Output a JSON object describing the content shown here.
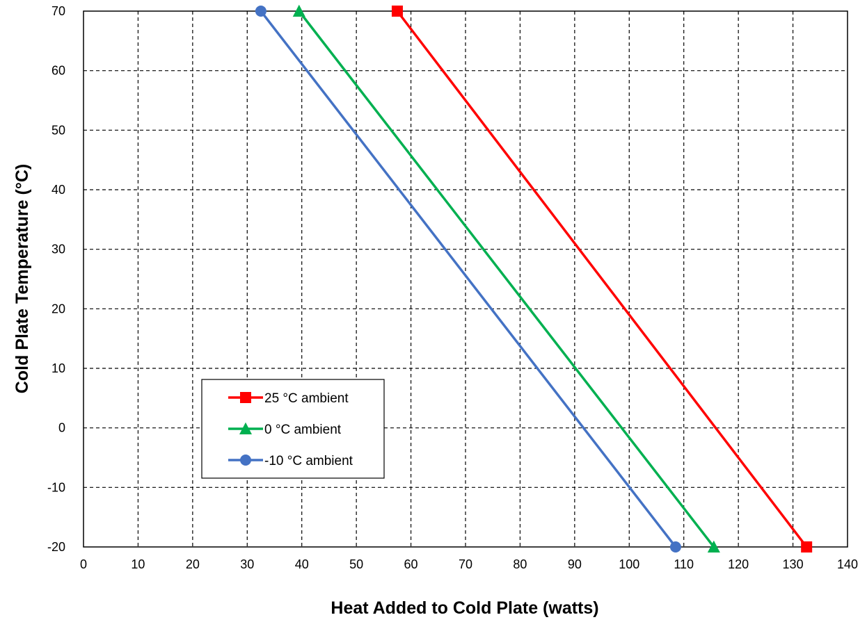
{
  "chart_data": {
    "type": "line",
    "title": "",
    "xlabel": "Heat Added to Cold Plate (watts)",
    "ylabel": "Cold Plate Temperature (°C)",
    "xlim": [
      0,
      140
    ],
    "ylim": [
      -20,
      70
    ],
    "xticks": [
      0,
      10,
      20,
      30,
      40,
      50,
      60,
      70,
      80,
      90,
      100,
      110,
      120,
      130,
      140
    ],
    "yticks": [
      -20,
      -10,
      0,
      10,
      20,
      30,
      40,
      50,
      60,
      70
    ],
    "grid": true,
    "legend_position": "lower-left",
    "series": [
      {
        "name": "25 °C ambient",
        "color": "#ff0000",
        "marker": "square",
        "points": [
          [
            57.5,
            70
          ],
          [
            132.5,
            -20
          ]
        ]
      },
      {
        "name": "0 °C ambient",
        "color": "#00b050",
        "marker": "triangle",
        "points": [
          [
            39.5,
            70
          ],
          [
            115.5,
            -20
          ]
        ]
      },
      {
        "name": "-10 °C ambient",
        "color": "#4472c4",
        "marker": "circle",
        "points": [
          [
            32.5,
            70
          ],
          [
            108.5,
            -20
          ]
        ]
      }
    ]
  }
}
